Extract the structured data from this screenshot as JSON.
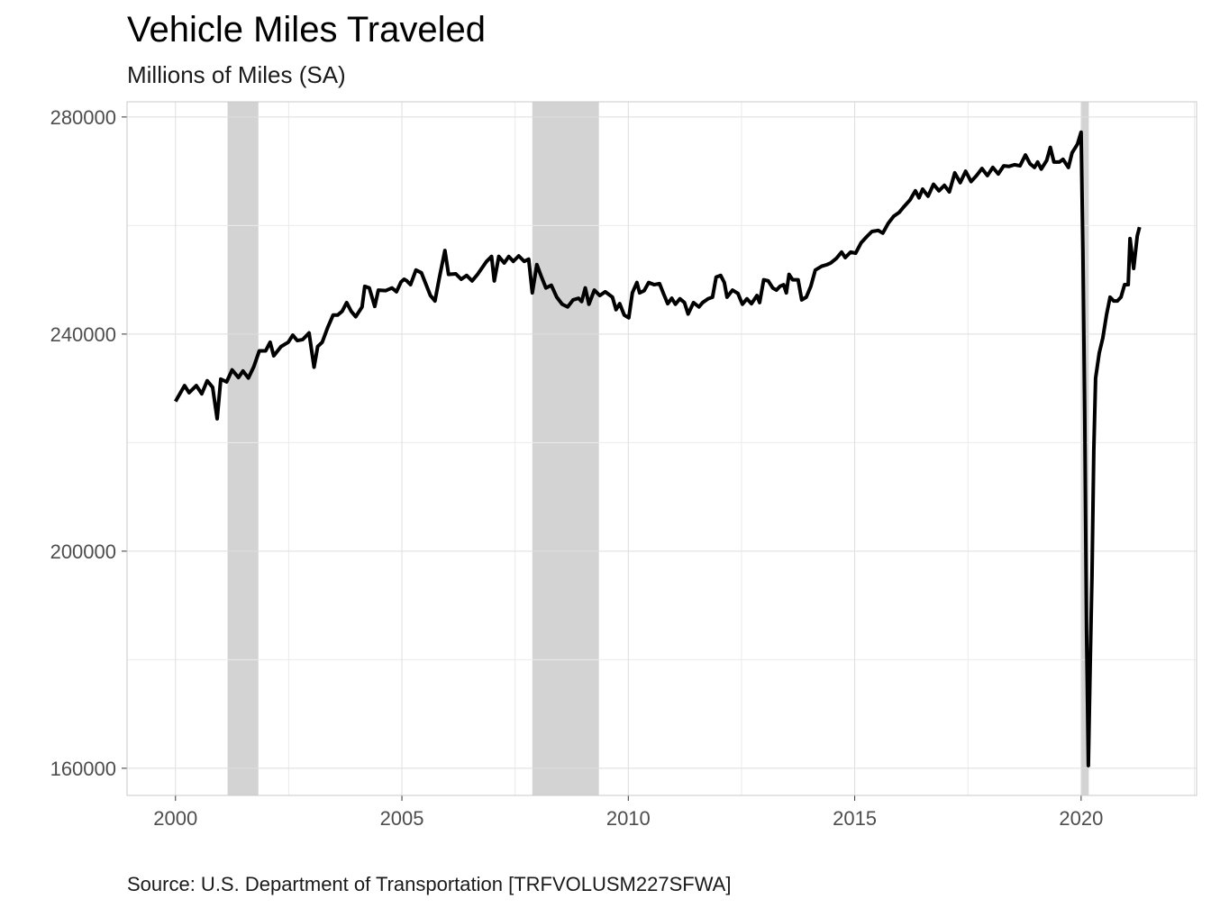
{
  "chart_data": {
    "type": "line",
    "title": "Vehicle Miles Traveled",
    "subtitle": "Millions of Miles (SA)",
    "caption": "Source: U.S. Department of Transportation [TRFVOLUSM227SFWA]",
    "xlim": [
      1998.93,
      2022.55
    ],
    "ylim": [
      155000,
      282800
    ],
    "xticks": [
      2000,
      2005,
      2010,
      2015,
      2020
    ],
    "yticks": [
      160000,
      200000,
      240000,
      280000
    ],
    "x_minor_grid": [
      2002.5,
      2007.5,
      2012.5,
      2017.5,
      2022.5
    ],
    "y_minor_grid": [
      180000,
      220000,
      260000
    ],
    "grid": true,
    "recessions": [
      [
        2001.15,
        2001.83
      ],
      [
        2007.88,
        2009.35
      ],
      [
        2020.0,
        2020.17
      ]
    ],
    "recession_color": "#d3d3d3",
    "series": [
      {
        "color": "#000000",
        "x": [
          2000.0,
          2000.2,
          2000.3,
          2000.46,
          2000.58,
          2000.7,
          2000.82,
          2000.92,
          2001.0,
          2001.13,
          2001.25,
          2001.39,
          2001.49,
          2001.61,
          2001.73,
          2001.85,
          2001.99,
          2002.09,
          2002.17,
          2002.33,
          2002.49,
          2002.59,
          2002.69,
          2002.81,
          2002.95,
          2003.06,
          2003.14,
          2003.24,
          2003.36,
          2003.48,
          2003.58,
          2003.68,
          2003.78,
          2003.88,
          2003.98,
          2004.12,
          2004.18,
          2004.28,
          2004.4,
          2004.48,
          2004.64,
          2004.78,
          2004.88,
          2004.98,
          2005.05,
          2005.11,
          2005.19,
          2005.31,
          2005.43,
          2005.63,
          2005.73,
          2005.83,
          2005.95,
          2006.03,
          2006.19,
          2006.31,
          2006.43,
          2006.55,
          2006.67,
          2006.87,
          2006.98,
          2007.04,
          2007.14,
          2007.26,
          2007.36,
          2007.46,
          2007.58,
          2007.7,
          2007.8,
          2007.88,
          2007.98,
          2008.07,
          2008.18,
          2008.3,
          2008.42,
          2008.54,
          2008.66,
          2008.78,
          2008.9,
          2008.97,
          2009.05,
          2009.13,
          2009.25,
          2009.37,
          2009.49,
          2009.65,
          2009.73,
          2009.81,
          2009.91,
          2010.01,
          2010.09,
          2010.19,
          2010.25,
          2010.35,
          2010.45,
          2010.57,
          2010.69,
          2010.77,
          2010.87,
          2010.96,
          2011.04,
          2011.14,
          2011.24,
          2011.32,
          2011.44,
          2011.56,
          2011.64,
          2011.76,
          2011.86,
          2011.94,
          2012.04,
          2012.12,
          2012.18,
          2012.3,
          2012.42,
          2012.52,
          2012.62,
          2012.72,
          2012.84,
          2012.9,
          2012.99,
          2013.09,
          2013.19,
          2013.27,
          2013.35,
          2013.43,
          2013.49,
          2013.55,
          2013.63,
          2013.75,
          2013.83,
          2013.93,
          2014.03,
          2014.13,
          2014.27,
          2014.39,
          2014.47,
          2014.59,
          2014.71,
          2014.79,
          2014.91,
          2015.02,
          2015.14,
          2015.26,
          2015.38,
          2015.52,
          2015.62,
          2015.74,
          2015.86,
          2015.98,
          2016.08,
          2016.22,
          2016.34,
          2016.42,
          2016.5,
          2016.62,
          2016.74,
          2016.86,
          2016.98,
          2017.09,
          2017.21,
          2017.33,
          2017.45,
          2017.57,
          2017.69,
          2017.81,
          2017.93,
          2018.05,
          2018.17,
          2018.29,
          2018.41,
          2018.53,
          2018.65,
          2018.77,
          2018.87,
          2018.97,
          2019.04,
          2019.12,
          2019.24,
          2019.32,
          2019.4,
          2019.52,
          2019.6,
          2019.72,
          2019.8,
          2019.92,
          2020.0,
          2020.04,
          2020.08,
          2020.12,
          2020.16,
          2020.2,
          2020.24,
          2020.28,
          2020.32,
          2020.4,
          2020.48,
          2020.56,
          2020.64,
          2020.72,
          2020.8,
          2020.88,
          2020.96,
          2021.04,
          2021.08,
          2021.16,
          2021.24,
          2021.29
        ],
        "values": [
          227600,
          230500,
          229200,
          230500,
          229000,
          231400,
          230200,
          224400,
          231700,
          231200,
          233400,
          232000,
          233200,
          231900,
          234000,
          236900,
          236900,
          238500,
          236000,
          237700,
          238500,
          239800,
          238800,
          239000,
          240200,
          233900,
          237700,
          238500,
          241200,
          243500,
          243500,
          244200,
          245800,
          244200,
          243200,
          245000,
          248800,
          248500,
          245100,
          248100,
          248000,
          248500,
          247800,
          249600,
          250100,
          249800,
          249100,
          251800,
          251300,
          247100,
          246100,
          250500,
          255400,
          251000,
          251100,
          250100,
          250800,
          249800,
          251000,
          253400,
          254300,
          249800,
          254300,
          253100,
          254300,
          253400,
          254400,
          253400,
          253800,
          247600,
          252800,
          250800,
          248500,
          249000,
          246800,
          245500,
          245000,
          246300,
          246600,
          246000,
          248500,
          245500,
          248100,
          247100,
          247800,
          246800,
          244500,
          245600,
          243500,
          243000,
          247600,
          249500,
          247600,
          248000,
          249500,
          249100,
          249300,
          247600,
          245600,
          246600,
          245500,
          246500,
          245800,
          243700,
          245800,
          245000,
          245800,
          246500,
          246800,
          250500,
          250800,
          249500,
          246800,
          248100,
          247500,
          245500,
          246500,
          245600,
          247100,
          245800,
          250000,
          249800,
          248500,
          248100,
          248800,
          249100,
          247600,
          251000,
          250000,
          250000,
          246300,
          246800,
          248800,
          251800,
          252500,
          252800,
          253100,
          253900,
          255100,
          254100,
          255100,
          254900,
          256800,
          257900,
          258900,
          259100,
          258600,
          260400,
          261700,
          262400,
          263400,
          264700,
          266400,
          265100,
          266700,
          265400,
          267600,
          266400,
          267400,
          266200,
          269700,
          267900,
          270000,
          268100,
          269200,
          270500,
          269200,
          270700,
          269500,
          271000,
          270900,
          271200,
          271000,
          273000,
          271400,
          270700,
          271700,
          270400,
          272000,
          274400,
          271700,
          271700,
          272200,
          270700,
          273400,
          275000,
          277200,
          255100,
          225200,
          185400,
          160500,
          178800,
          195400,
          218600,
          231900,
          236500,
          239300,
          243500,
          246800,
          246100,
          246100,
          246800,
          249100,
          249100,
          257600,
          252100,
          258100,
          259700
        ]
      }
    ]
  }
}
